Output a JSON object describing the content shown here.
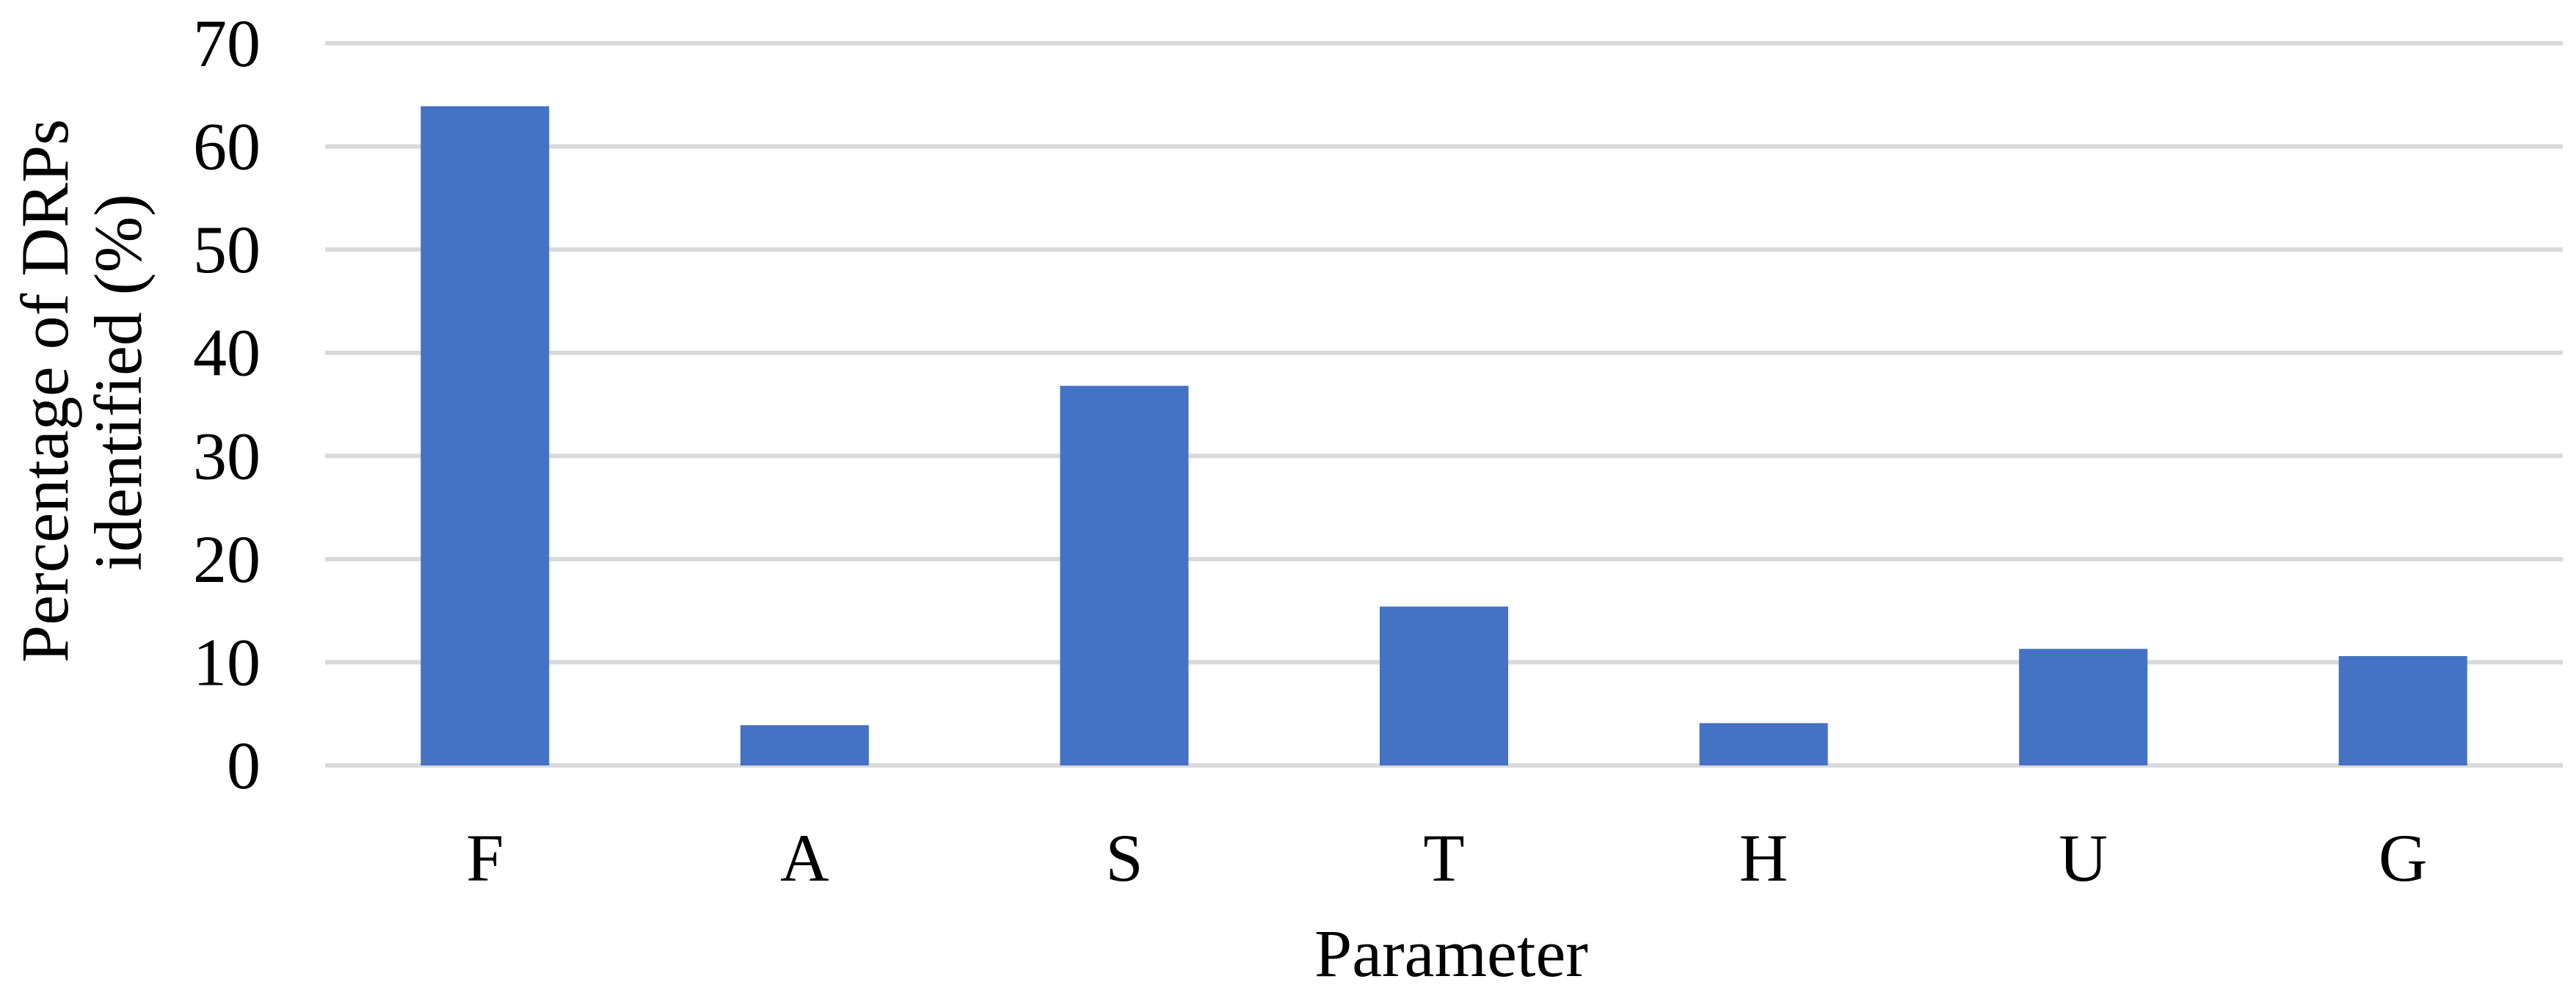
{
  "chart_data": {
    "type": "bar",
    "categories": [
      "F",
      "A",
      "S",
      "T",
      "H",
      "U",
      "G"
    ],
    "series": [
      {
        "values": [
          63.9,
          3.9,
          36.8,
          15.4,
          4.1,
          11.3,
          10.6
        ]
      }
    ],
    "xlabel": "Parameter",
    "ylabel_lines": [
      "Percentage of DRPs",
      "identified (%)"
    ],
    "ylim": [
      0,
      70
    ],
    "yticks": [
      0,
      10,
      20,
      30,
      40,
      50,
      60,
      70
    ],
    "grid": true,
    "legend": "none",
    "bar_color": "#4472c4"
  }
}
